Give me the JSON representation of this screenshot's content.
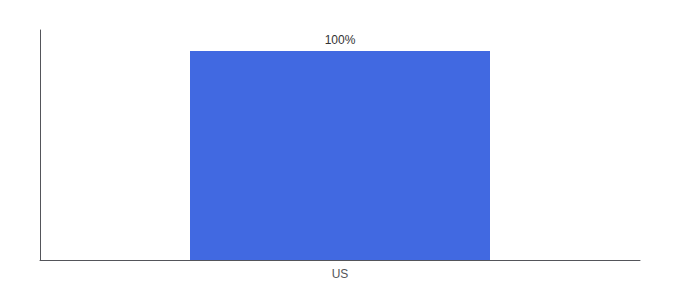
{
  "chart_data": {
    "type": "bar",
    "categories": [
      "US"
    ],
    "values": [
      100
    ],
    "value_labels": [
      "100%"
    ],
    "data_labels": true,
    "color": "#4169E1",
    "ylim": [
      0,
      110
    ],
    "grid": false,
    "tick_labels": "x"
  }
}
